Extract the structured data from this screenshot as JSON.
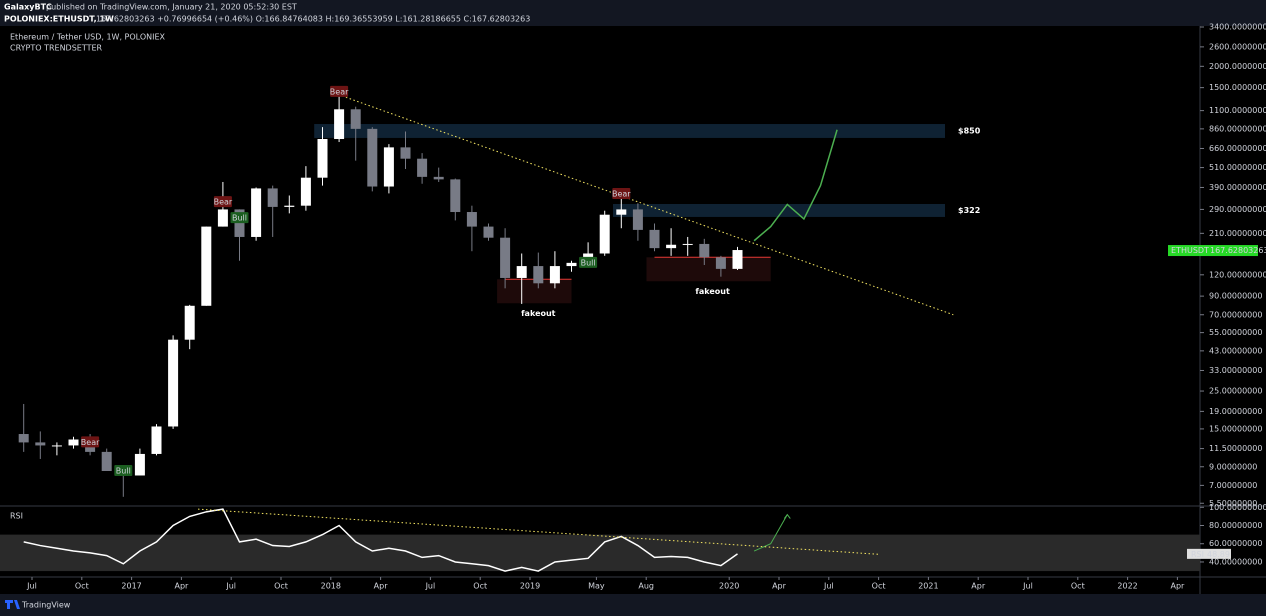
{
  "header": {
    "author": "GalaxyBTC",
    "published": "published on TradingView.com, January 21, 2020 05:52:30 EST",
    "symbol": "POLONIEX:ETHUSDT, 1W",
    "quote": "167.62803263 +0.76996654 (+0.46%) O:166.84764083 H:169.36553959 L:161.28186655 C:167.62803263"
  },
  "footer": {
    "brand": "TradingView"
  },
  "chart_data": [
    {
      "type": "candlestick",
      "title": "Ethereum / Tether USD, 1W, POLONIEX",
      "subtitle": "CRYPTO TRENDSETTER",
      "log_scale": true,
      "x": [
        "2016-06",
        "2016-07",
        "2016-08",
        "2016-09",
        "2016-10",
        "2016-11",
        "2016-12",
        "2017-01",
        "2017-02",
        "2017-03",
        "2017-04",
        "2017-05",
        "2017-06",
        "2017-07",
        "2017-08",
        "2017-09",
        "2017-10",
        "2017-11",
        "2017-12",
        "2018-01",
        "2018-02",
        "2018-03",
        "2018-04",
        "2018-05",
        "2018-06",
        "2018-07",
        "2018-08",
        "2018-09",
        "2018-10",
        "2018-11",
        "2018-12",
        "2019-01",
        "2019-02",
        "2019-03",
        "2019-04",
        "2019-05",
        "2019-06",
        "2019-07",
        "2019-08",
        "2019-09",
        "2019-10",
        "2019-11",
        "2019-12",
        "2020-01"
      ],
      "open": [
        14,
        12.5,
        12,
        12,
        13,
        11,
        8.5,
        8,
        10.7,
        15.5,
        50,
        79,
        230,
        290,
        200,
        385,
        300,
        305,
        445,
        750,
        1120,
        860,
        395,
        670,
        575,
        450,
        435,
        280,
        230,
        198,
        115,
        135,
        107,
        135,
        141,
        160,
        270,
        290,
        220,
        172,
        180,
        182,
        152,
        130
      ],
      "high": [
        21,
        14.5,
        12.5,
        13.5,
        14,
        11.5,
        9,
        11.5,
        16,
        53,
        80,
        230,
        420,
        290,
        390,
        400,
        350,
        520,
        880,
        1420,
        1160,
        880,
        700,
        830,
        620,
        510,
        440,
        305,
        240,
        225,
        160,
        162,
        165,
        145,
        186,
        285,
        360,
        315,
        240,
        225,
        200,
        195,
        155,
        175
      ],
      "low": [
        11,
        10,
        10.5,
        11.5,
        10.5,
        8.5,
        6,
        8,
        10.5,
        15,
        44,
        79,
        230,
        145,
        190,
        200,
        275,
        285,
        400,
        720,
        560,
        370,
        360,
        500,
        410,
        420,
        250,
        165,
        190,
        100,
        81,
        100,
        100,
        125,
        140,
        155,
        225,
        190,
        165,
        155,
        155,
        137,
        117,
        128
      ],
      "close": [
        12.5,
        12,
        12,
        13,
        11,
        8.5,
        8,
        10.7,
        15.5,
        50,
        79,
        230,
        290,
        200,
        385,
        300,
        305,
        445,
        750,
        1120,
        860,
        395,
        670,
        575,
        450,
        435,
        280,
        230,
        198,
        115,
        135,
        107,
        135,
        141,
        160,
        270,
        290,
        220,
        172,
        180,
        182,
        152,
        130,
        167.62803263
      ],
      "up_color": "#ffffff",
      "down_color": "#787b86",
      "ylim": [
        5.3,
        3400
      ],
      "yticks": [
        {
          "value": 3400,
          "label": "3400.00000000"
        },
        {
          "value": 2600,
          "label": "2600.00000000"
        },
        {
          "value": 2000,
          "label": "2000.00000000"
        },
        {
          "value": 1500,
          "label": "1500.00000000"
        },
        {
          "value": 1100,
          "label": "1100.00000000"
        },
        {
          "value": 860,
          "label": "860.00000000"
        },
        {
          "value": 660,
          "label": "660.00000000"
        },
        {
          "value": 510,
          "label": "510.00000000"
        },
        {
          "value": 390,
          "label": "390.00000000"
        },
        {
          "value": 290,
          "label": "290.00000000"
        },
        {
          "value": 210,
          "label": "210.00000000"
        },
        {
          "value": 120,
          "label": "120.00000000"
        },
        {
          "value": 90,
          "label": "90.00000000"
        },
        {
          "value": 70,
          "label": "70.00000000"
        },
        {
          "value": 55,
          "label": "55.00000000"
        },
        {
          "value": 43,
          "label": "43.00000000"
        },
        {
          "value": 33,
          "label": "33.00000000"
        },
        {
          "value": 25,
          "label": "25.00000000"
        },
        {
          "value": 19,
          "label": "19.00000000"
        },
        {
          "value": 15,
          "label": "15.00000000"
        },
        {
          "value": 11.5,
          "label": "11.50000000"
        },
        {
          "value": 9,
          "label": "9.00000000"
        },
        {
          "value": 7,
          "label": "7.00000000"
        },
        {
          "value": 5.5,
          "label": "5.50000000"
        }
      ],
      "xticks": [
        {
          "value": "2016-07",
          "label": "Jul"
        },
        {
          "value": "2016-10",
          "label": "Oct"
        },
        {
          "value": "2017-01",
          "label": "2017"
        },
        {
          "value": "2017-04",
          "label": "Apr"
        },
        {
          "value": "2017-07",
          "label": "Jul"
        },
        {
          "value": "2017-10",
          "label": "Oct"
        },
        {
          "value": "2018-01",
          "label": "2018"
        },
        {
          "value": "2018-04",
          "label": "Apr"
        },
        {
          "value": "2018-07",
          "label": "Jul"
        },
        {
          "value": "2018-10",
          "label": "Oct"
        },
        {
          "value": "2019-01",
          "label": "2019"
        },
        {
          "value": "2019-05",
          "label": "May"
        },
        {
          "value": "2019-08",
          "label": "Aug"
        },
        {
          "value": "2020-01",
          "label": "2020"
        },
        {
          "value": "2020-04",
          "label": "Apr"
        },
        {
          "value": "2020-07",
          "label": "Jul"
        },
        {
          "value": "2020-10",
          "label": "Oct"
        },
        {
          "value": "2021-01",
          "label": "2021"
        },
        {
          "value": "2021-04",
          "label": "Apr"
        },
        {
          "value": "2021-07",
          "label": "Jul"
        },
        {
          "value": "2021-10",
          "label": "Oct"
        },
        {
          "value": "2022-01",
          "label": "2022"
        },
        {
          "value": "2022-04",
          "label": "Apr"
        }
      ],
      "last_price": {
        "name": "ETHUSDT",
        "value": 167.62803263,
        "color": "#26d926"
      },
      "projection": {
        "color": "#4caf50",
        "x": [
          "2020-02",
          "2020-03",
          "2020-04",
          "2020-05",
          "2020-06",
          "2020-07"
        ],
        "values": [
          190,
          230,
          310,
          255,
          400,
          850
        ]
      },
      "trendline": {
        "color": "#f5e663",
        "x": [
          "2018-01",
          "2021-02"
        ],
        "values": [
          1416,
          70
        ]
      },
      "zones": [
        {
          "label": "$850",
          "from": "2017-12",
          "to": "2021-02",
          "low": 761,
          "high": 918,
          "color": "#0f2233"
        },
        {
          "label": "$322",
          "from": "2019-06",
          "to": "2021-02",
          "low": 262,
          "high": 312,
          "color": "#0f2233"
        }
      ],
      "signals": [
        {
          "label": "Bear",
          "x": "2016-10",
          "value": 12.5,
          "color": "#6d1414"
        },
        {
          "label": "Bull",
          "x": "2016-12",
          "value": 8.5,
          "color": "#1b5e20"
        },
        {
          "label": "Bear",
          "x": "2017-06",
          "value": 320,
          "color": "#6d1414"
        },
        {
          "label": "Bull",
          "x": "2017-07",
          "value": 258,
          "color": "#1b5e20"
        },
        {
          "label": "Bear",
          "x": "2018-01",
          "value": 1416,
          "color": "#6d1414"
        },
        {
          "label": "Bull",
          "x": "2019-04",
          "value": 141,
          "color": "#1b5e20"
        },
        {
          "label": "Bear",
          "x": "2019-06",
          "value": 357,
          "color": "#6d1414"
        }
      ],
      "fakeouts": [
        {
          "label": "fakeout",
          "from": "2018-11",
          "to": "2019-03",
          "value": 113,
          "color": "#e53935"
        },
        {
          "label": "fakeout",
          "from": "2019-08",
          "to": "2020-03",
          "value": 152,
          "color": "#e53935"
        }
      ]
    },
    {
      "type": "line",
      "title": "RSI",
      "x": [
        "2016-06",
        "2016-07",
        "2016-08",
        "2016-09",
        "2016-10",
        "2016-11",
        "2016-12",
        "2017-01",
        "2017-02",
        "2017-03",
        "2017-04",
        "2017-05",
        "2017-06",
        "2017-07",
        "2017-08",
        "2017-09",
        "2017-10",
        "2017-11",
        "2017-12",
        "2018-01",
        "2018-02",
        "2018-03",
        "2018-04",
        "2018-05",
        "2018-06",
        "2018-07",
        "2018-08",
        "2018-09",
        "2018-10",
        "2018-11",
        "2018-12",
        "2019-01",
        "2019-02",
        "2019-03",
        "2019-04",
        "2019-05",
        "2019-06",
        "2019-07",
        "2019-08",
        "2019-09",
        "2019-10",
        "2019-11",
        "2019-12",
        "2020-01"
      ],
      "series": [
        {
          "name": "RSI",
          "color": "#ffffff",
          "values": [
            62,
            58,
            55,
            52,
            50,
            47,
            38,
            52,
            62,
            80,
            90,
            95,
            98,
            62,
            65,
            58,
            57,
            62,
            70,
            80,
            62,
            52,
            55,
            52,
            45,
            47,
            40,
            38,
            36,
            30,
            34,
            30,
            40,
            42,
            44,
            62,
            68,
            58,
            45,
            46,
            45,
            40,
            36,
            48.89
          ]
        }
      ],
      "band": [
        30,
        70
      ],
      "ylim": [
        23.5,
        101.4
      ],
      "yticks": [
        {
          "value": 100,
          "label": "100.00000000"
        },
        {
          "value": 80,
          "label": "80.00000000"
        },
        {
          "value": 60,
          "label": "60.00000000"
        },
        {
          "value": 40,
          "label": "40.00000000"
        }
      ],
      "projection": {
        "color": "#4caf50",
        "x": [
          "2020-02",
          "2020-03",
          "2020-04"
        ],
        "values": [
          52,
          60,
          92
        ]
      },
      "trendline": {
        "color": "#f5e663",
        "x": [
          "2017-05",
          "2020-10"
        ],
        "values": [
          98,
          48.4
        ]
      }
    }
  ]
}
